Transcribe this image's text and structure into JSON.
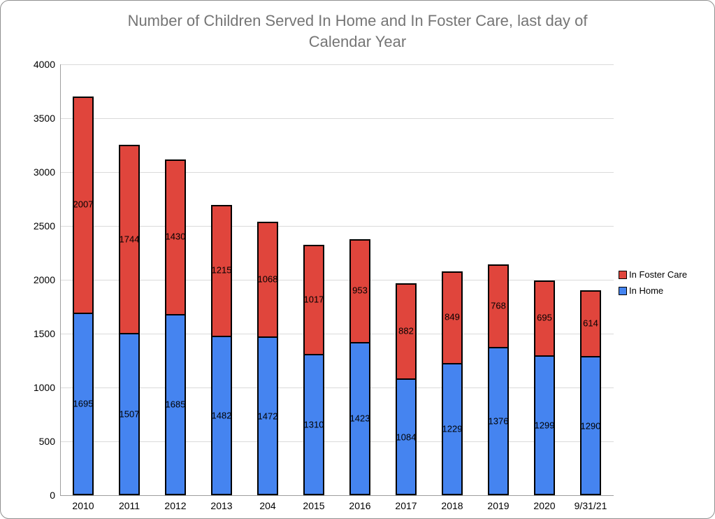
{
  "chart_data": {
    "type": "bar",
    "stacked": true,
    "title": "Number of Children Served In Home and In Foster Care, last day of Calendar Year",
    "categories": [
      "2010",
      "2011",
      "2012",
      "2013",
      "204",
      "2015",
      "2016",
      "2017",
      "2018",
      "2019",
      "2020",
      "9/31/21"
    ],
    "series": [
      {
        "name": "In Home",
        "color": "#4584f0",
        "values": [
          1695,
          1507,
          1685,
          1482,
          1472,
          1310,
          1423,
          1084,
          1229,
          1376,
          1299,
          1290
        ]
      },
      {
        "name": "In Foster Care",
        "color": "#e0453c",
        "values": [
          2007,
          1744,
          1430,
          1215,
          1068,
          1017,
          953,
          882,
          849,
          768,
          695,
          614
        ]
      }
    ],
    "ylim": [
      0,
      4000
    ],
    "yticks": [
      "0",
      "500",
      "1000",
      "1500",
      "2000",
      "2500",
      "3000",
      "3500",
      "4000"
    ],
    "grid": true,
    "bar_border_color": "#000000",
    "data_labels_shown": true,
    "legend": {
      "position": "right",
      "order": [
        "In Foster Care",
        "In Home"
      ]
    }
  }
}
